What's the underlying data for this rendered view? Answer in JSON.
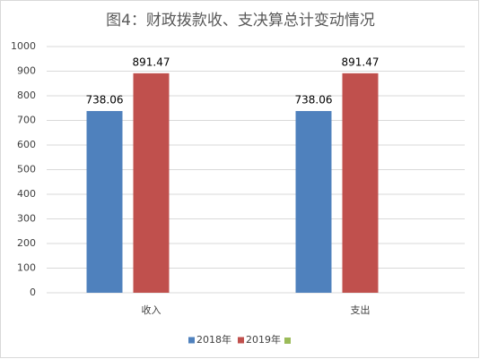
{
  "chart_data": {
    "type": "bar",
    "title": "图4：财政拨款收、支决算总计变动情况",
    "categories": [
      "收入",
      "支出"
    ],
    "series": [
      {
        "name": "2018年",
        "color": "#4f81bd",
        "values": [
          738.06,
          738.06
        ]
      },
      {
        "name": "2019年",
        "color": "#c0504d",
        "values": [
          891.47,
          891.47
        ]
      }
    ],
    "ylim": [
      0,
      1000
    ],
    "yticks": [
      0,
      100,
      200,
      300,
      400,
      500,
      600,
      700,
      800,
      900,
      1000
    ],
    "grid": true,
    "legend": "bottom"
  }
}
